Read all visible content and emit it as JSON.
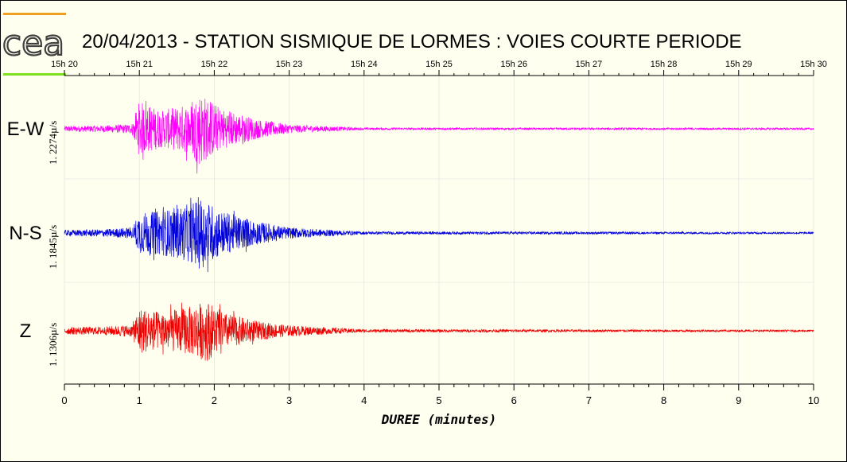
{
  "chart_data": {
    "type": "line",
    "title": "20/04/2013  -  STATION SISMIQUE DE LORMES : VOIES COURTE PERIODE",
    "xlabel": "DUREE (minutes)",
    "xlim": [
      0,
      10
    ],
    "x_ticks_bottom": [
      "0",
      "1",
      "2",
      "3",
      "4",
      "5",
      "6",
      "7",
      "8",
      "9",
      "10"
    ],
    "x_ticks_top": [
      "15h 20",
      "15h 21",
      "15h 22",
      "15h 23",
      "15h 24",
      "15h 25",
      "15h 26",
      "15h 27",
      "15h 28",
      "15h 29",
      "15h 30"
    ],
    "grid": true,
    "series": [
      {
        "name": "E-W",
        "amplitude_label": "1. 2274µ/s",
        "color": "#ff00ff",
        "envelope_x": [
          0,
          0.5,
          0.9,
          1.0,
          1.3,
          1.7,
          1.8,
          2.1,
          2.6,
          3.0,
          3.4,
          4.0,
          10
        ],
        "envelope_amp": [
          0.08,
          0.09,
          0.13,
          0.75,
          0.5,
          0.7,
          1.0,
          0.55,
          0.25,
          0.12,
          0.08,
          0.03,
          0.025
        ]
      },
      {
        "name": "N-S",
        "amplitude_label": "1. 1845µ/s",
        "color": "#0000dd",
        "envelope_x": [
          0,
          0.5,
          0.9,
          1.0,
          1.3,
          1.7,
          1.8,
          2.1,
          2.6,
          3.0,
          3.6,
          4.0,
          10
        ],
        "envelope_amp": [
          0.08,
          0.1,
          0.15,
          0.55,
          0.6,
          0.8,
          1.0,
          0.6,
          0.3,
          0.15,
          0.08,
          0.04,
          0.025
        ]
      },
      {
        "name": "Z",
        "amplitude_label": "1. 1306µ/s",
        "color": "#ee0000",
        "envelope_x": [
          0,
          0.5,
          0.9,
          1.0,
          1.3,
          1.7,
          1.9,
          2.1,
          2.6,
          3.0,
          3.6,
          4.0,
          10
        ],
        "envelope_amp": [
          0.12,
          0.13,
          0.2,
          0.75,
          0.6,
          0.8,
          1.0,
          0.6,
          0.3,
          0.18,
          0.1,
          0.05,
          0.03
        ]
      }
    ]
  },
  "logo": {
    "text": "cea",
    "color": "#404040"
  }
}
